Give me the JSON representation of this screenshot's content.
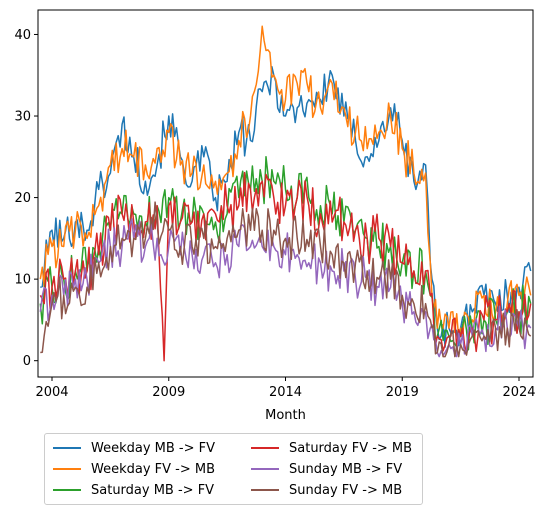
{
  "chart_data": {
    "type": "line",
    "title": "",
    "xlabel": "Month",
    "ylabel": "",
    "xlim": [
      2003.4,
      2024.6
    ],
    "ylim": [
      -2,
      43
    ],
    "x_ticks": [
      2004,
      2009,
      2014,
      2019,
      2024
    ],
    "x_tick_labels": [
      "2004",
      "2009",
      "2014",
      "2019",
      "2024"
    ],
    "y_ticks": [
      0,
      10,
      20,
      30,
      40
    ],
    "y_tick_labels": [
      "0",
      "10",
      "20",
      "30",
      "40"
    ],
    "grid": false,
    "legend_position": "below",
    "x_step_months": 1,
    "series": [
      {
        "name": "Weekday MB -> FV",
        "color": "#1f77b4",
        "x": [
          2003.5,
          2004.0,
          2004.5,
          2005.0,
          2005.5,
          2006.0,
          2006.5,
          2007.0,
          2007.5,
          2008.0,
          2008.5,
          2009.0,
          2009.5,
          2010.0,
          2010.5,
          2011.0,
          2011.5,
          2012.0,
          2012.5,
          2013.0,
          2013.5,
          2014.0,
          2014.5,
          2015.0,
          2015.5,
          2016.0,
          2016.5,
          2017.0,
          2017.5,
          2018.0,
          2018.5,
          2019.0,
          2019.5,
          2020.0,
          2020.2,
          2020.5,
          2021.0,
          2021.5,
          2022.0,
          2022.5,
          2023.0,
          2023.5,
          2024.0,
          2024.5
        ],
        "values": [
          9,
          16,
          15,
          17,
          16,
          21,
          23,
          29,
          25,
          22,
          24,
          30,
          25,
          22,
          25,
          20,
          22,
          28,
          27,
          33,
          35,
          30,
          31,
          32,
          32,
          35,
          30,
          27,
          25,
          27,
          31,
          27,
          22,
          24,
          12,
          4,
          4,
          4,
          6,
          8,
          7,
          8,
          9,
          11
        ]
      },
      {
        "name": "Weekday FV -> MB",
        "color": "#ff7f0e",
        "x": [
          2003.5,
          2004.0,
          2004.5,
          2005.0,
          2005.5,
          2006.0,
          2006.5,
          2007.0,
          2007.5,
          2008.0,
          2008.5,
          2009.0,
          2009.5,
          2010.0,
          2010.5,
          2011.0,
          2011.5,
          2012.0,
          2012.5,
          2013.0,
          2013.5,
          2014.0,
          2014.5,
          2015.0,
          2015.5,
          2016.0,
          2016.5,
          2017.0,
          2017.5,
          2018.0,
          2018.5,
          2019.0,
          2019.5,
          2020.0,
          2020.2,
          2020.5,
          2021.0,
          2021.5,
          2022.0,
          2022.5,
          2023.0,
          2023.5,
          2024.0,
          2024.5
        ],
        "values": [
          10,
          14,
          14,
          16,
          15,
          19,
          24,
          26,
          25,
          24,
          26,
          28,
          24,
          23,
          24,
          22,
          23,
          27,
          30,
          41,
          35,
          32,
          34,
          33,
          31,
          34,
          31,
          28,
          26,
          28,
          30,
          26,
          23,
          23,
          12,
          4,
          4,
          4,
          5,
          8,
          6,
          7,
          8,
          8
        ]
      },
      {
        "name": "Saturday MB -> FV",
        "color": "#2ca02c",
        "x": [
          2003.5,
          2004.0,
          2004.5,
          2005.0,
          2005.5,
          2006.0,
          2006.5,
          2007.0,
          2007.5,
          2008.0,
          2008.5,
          2009.0,
          2009.5,
          2010.0,
          2010.5,
          2011.0,
          2011.5,
          2012.0,
          2012.5,
          2013.0,
          2013.5,
          2014.0,
          2014.5,
          2015.0,
          2015.5,
          2016.0,
          2016.5,
          2017.0,
          2017.5,
          2018.0,
          2018.5,
          2019.0,
          2019.5,
          2020.0,
          2020.2,
          2020.5,
          2021.0,
          2021.5,
          2022.0,
          2022.5,
          2023.0,
          2023.5,
          2024.0,
          2024.5
        ],
        "values": [
          7,
          9,
          10,
          11,
          11,
          14,
          16,
          18,
          18,
          17,
          19,
          20,
          17,
          17,
          18,
          17,
          18,
          20,
          21,
          22,
          22,
          21,
          20,
          20,
          19,
          18,
          17,
          16,
          15,
          14,
          14,
          12,
          11,
          11,
          8,
          3,
          3,
          3,
          4,
          5,
          5,
          6,
          6,
          7
        ]
      },
      {
        "name": "Saturday FV -> MB",
        "color": "#d62728",
        "x": [
          2003.5,
          2004.0,
          2004.5,
          2005.0,
          2005.5,
          2006.0,
          2006.5,
          2007.0,
          2007.5,
          2008.0,
          2008.5,
          2008.8,
          2009.0,
          2009.5,
          2010.0,
          2010.5,
          2011.0,
          2011.5,
          2012.0,
          2012.5,
          2013.0,
          2013.5,
          2014.0,
          2014.5,
          2015.0,
          2015.5,
          2016.0,
          2016.5,
          2017.0,
          2017.5,
          2018.0,
          2018.5,
          2019.0,
          2019.5,
          2020.0,
          2020.2,
          2020.5,
          2021.0,
          2021.5,
          2022.0,
          2022.5,
          2023.0,
          2023.5,
          2024.0,
          2024.5
        ],
        "values": [
          8,
          9,
          10,
          11,
          11,
          13,
          16,
          18,
          17,
          17,
          19,
          0,
          19,
          17,
          17,
          18,
          18,
          19,
          19,
          21,
          22,
          20,
          19,
          20,
          19,
          18,
          17,
          17,
          16,
          15,
          15,
          14,
          12,
          11,
          11,
          8,
          3,
          3,
          3,
          4,
          5,
          5,
          6,
          6,
          7
        ]
      },
      {
        "name": "Sunday MB -> FV",
        "color": "#9467bd",
        "x": [
          2003.5,
          2004.0,
          2004.5,
          2005.0,
          2005.5,
          2006.0,
          2006.5,
          2007.0,
          2007.5,
          2008.0,
          2008.5,
          2009.0,
          2009.5,
          2010.0,
          2010.5,
          2011.0,
          2011.5,
          2012.0,
          2012.5,
          2013.0,
          2013.5,
          2014.0,
          2014.5,
          2015.0,
          2015.5,
          2016.0,
          2016.5,
          2017.0,
          2017.5,
          2018.0,
          2018.5,
          2019.0,
          2019.5,
          2020.0,
          2020.2,
          2020.5,
          2021.0,
          2021.5,
          2022.0,
          2022.5,
          2023.0,
          2023.5,
          2024.0,
          2024.5
        ],
        "values": [
          6,
          8,
          8,
          10,
          10,
          12,
          14,
          14,
          15,
          14,
          15,
          14,
          13,
          13,
          13,
          12,
          13,
          14,
          14,
          14,
          14,
          13,
          13,
          12,
          12,
          11,
          11,
          10,
          10,
          9,
          9,
          7,
          6,
          6,
          4,
          1,
          2,
          2,
          3,
          3,
          4,
          4,
          4,
          4
        ]
      },
      {
        "name": "Sunday FV -> MB",
        "color": "#8c564b",
        "x": [
          2003.5,
          2004.0,
          2004.5,
          2005.0,
          2005.5,
          2006.0,
          2006.5,
          2007.0,
          2007.5,
          2008.0,
          2008.5,
          2009.0,
          2009.5,
          2010.0,
          2010.5,
          2011.0,
          2011.5,
          2012.0,
          2012.5,
          2013.0,
          2013.5,
          2014.0,
          2014.5,
          2015.0,
          2015.5,
          2016.0,
          2016.5,
          2017.0,
          2017.5,
          2018.0,
          2018.5,
          2019.0,
          2019.5,
          2020.0,
          2020.2,
          2020.5,
          2021.0,
          2021.5,
          2022.0,
          2022.5,
          2023.0,
          2023.5,
          2024.0,
          2024.5
        ],
        "values": [
          1,
          7,
          8,
          9,
          9,
          12,
          14,
          15,
          15,
          15,
          17,
          16,
          14,
          14,
          15,
          14,
          15,
          16,
          16,
          16,
          16,
          15,
          15,
          14,
          14,
          13,
          12,
          12,
          11,
          10,
          10,
          8,
          7,
          7,
          5,
          1,
          2,
          2,
          3,
          3,
          4,
          4,
          4,
          3
        ]
      }
    ]
  }
}
